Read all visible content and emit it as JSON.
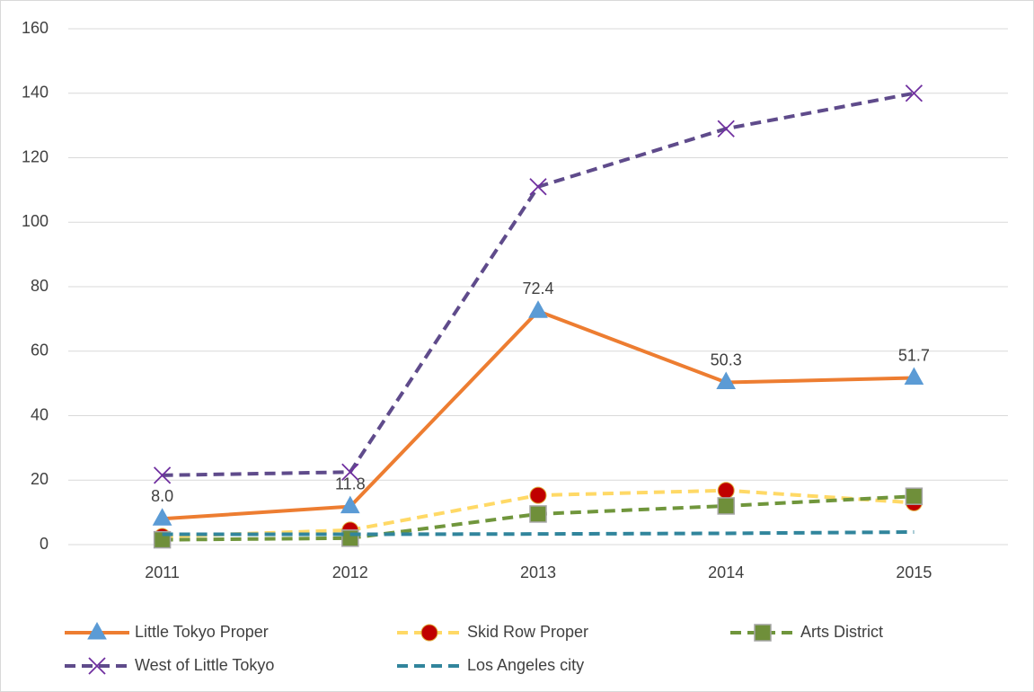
{
  "chart_data": {
    "type": "line",
    "categories": [
      "2011",
      "2012",
      "2013",
      "2014",
      "2015"
    ],
    "ylim": [
      0,
      160
    ],
    "yticks": [
      0,
      20,
      40,
      60,
      80,
      100,
      120,
      140,
      160
    ],
    "grid": true,
    "legend": "bottom",
    "series": [
      {
        "name": "Little Tokyo Proper",
        "color": "#ed7d31",
        "marker": "triangle",
        "marker_color": "#5b9bd5",
        "line_style": "solid",
        "values": [
          8.0,
          11.8,
          72.4,
          50.3,
          51.7
        ],
        "value_labels": [
          "8.0",
          "11.8",
          "72.4",
          "50.3",
          "51.7"
        ]
      },
      {
        "name": "Skid Row Proper",
        "color": "#ffd966",
        "marker": "circle",
        "marker_color": "#c00000",
        "line_style": "dashed",
        "values": [
          2.5,
          4.5,
          15.3,
          16.8,
          13
        ]
      },
      {
        "name": "Arts District",
        "color": "#70963c",
        "marker": "square",
        "marker_color": "#6f8f3a",
        "line_style": "dashed",
        "values": [
          1.5,
          2,
          9.5,
          12,
          15
        ]
      },
      {
        "name": "West of Little Tokyo",
        "color": "#5f4b8b",
        "marker": "x",
        "marker_color": "#7030a0",
        "line_style": "dashed",
        "values": [
          21.5,
          22.5,
          111,
          129,
          140
        ]
      },
      {
        "name": "Los Angeles city",
        "color": "#31859c",
        "marker": "none",
        "marker_color": "#31859c",
        "line_style": "dashed",
        "values": [
          3.2,
          3.2,
          3.3,
          3.5,
          3.9
        ]
      }
    ]
  }
}
